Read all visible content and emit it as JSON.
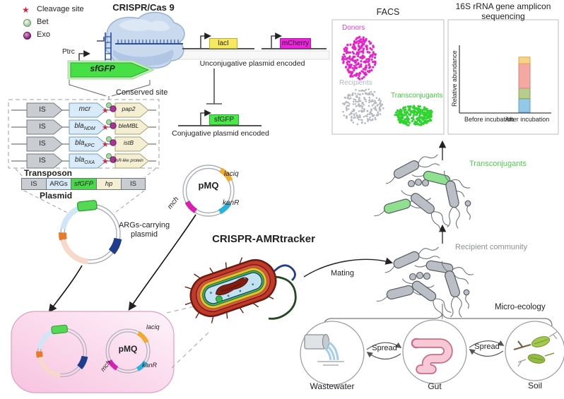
{
  "legend": {
    "items": [
      {
        "icon": "cleavage-star",
        "label": "Cleavage site"
      },
      {
        "icon": "bet-sphere",
        "label": "Bet"
      },
      {
        "icon": "exo-sphere",
        "label": "Exo"
      }
    ]
  },
  "crispr": {
    "title": "CRISPR/Cas 9",
    "promoter": "Ptrc",
    "gene": "sfGFP",
    "conserved_site": "Conserved site"
  },
  "cassettes": {
    "rows": [
      {
        "is": "IS",
        "gene": "mcr",
        "gene_sub": "",
        "target": "pap2"
      },
      {
        "is": "IS",
        "gene": "bla",
        "gene_sub": "NDM",
        "target": "bleMBL"
      },
      {
        "is": "IS",
        "gene": "bla",
        "gene_sub": "KPC",
        "target": "istB"
      },
      {
        "is": "IS",
        "gene": "bla",
        "gene_sub": "OXA",
        "target": "ysR-like protein"
      }
    ]
  },
  "transposon": {
    "title": "Transposon",
    "segments": [
      "IS",
      "ARGs",
      "sfGFP",
      "hp",
      "IS"
    ]
  },
  "plasmid_section": {
    "title": "Plasmid",
    "args_label_line1": "ARGs-carrying",
    "args_label_line2": "plasmid"
  },
  "constructs": {
    "laci": "lacI",
    "mcherry": "mCherry",
    "unconjugative": "Unconjugative plasmid encoded",
    "sfgfp": "sfGFP",
    "conjugative": "Conjugative plasmid encoded"
  },
  "pmq": {
    "name": "pMQ",
    "laciq": "laciq",
    "kanr": "kanR",
    "mch": "mch"
  },
  "tracker": {
    "title": "CRISPR-AMRtracker",
    "mating": "Mating"
  },
  "facs": {
    "title": "FACS",
    "clusters": [
      {
        "name": "Donors",
        "color": "#e623c8",
        "label_color": "#e83cc8",
        "dots": 230,
        "size": 1.6
      },
      {
        "name": "Recipients",
        "color": "#b4bac0",
        "label_color": "#b0b8be",
        "dots": 210,
        "size": 1.3
      },
      {
        "name": "Transconjugants",
        "color": "#2fd42f",
        "label_color": "#3ecb3e",
        "dots": 240,
        "size": 1.6
      }
    ]
  },
  "sequencing": {
    "title_line1": "16S rRNA gene amplicon",
    "title_line2": "sequencing"
  },
  "chart_data": {
    "type": "bar",
    "stacked": true,
    "title": "16S rRNA gene amplicon sequencing",
    "categories": [
      "Before incubation",
      "After incubation"
    ],
    "series": [
      {
        "name": "taxon-blue",
        "color": "#92c8e8",
        "border": "#64a0c8",
        "values": [
          0,
          0.21
        ]
      },
      {
        "name": "taxon-green",
        "color": "#b6cd8c",
        "border": "#8aa455",
        "values": [
          0,
          0.16
        ]
      },
      {
        "name": "taxon-salmon",
        "color": "#f3a9a1",
        "border": "#d4847c",
        "values": [
          0,
          0.38
        ]
      },
      {
        "name": "taxon-yellow",
        "color": "#f6d387",
        "border": "#daa94f",
        "values": [
          0,
          0.1
        ]
      }
    ],
    "ylabel": "Relative abundance",
    "ylim": [
      0,
      1
    ],
    "grid": false,
    "legend_position": "none"
  },
  "community": {
    "transconjugants": "Transconjugants",
    "transconjugants_color": "#4ad04a",
    "recipient": "Recipient community",
    "recipient_color": "#8a9096"
  },
  "ecology": {
    "title": "Micro-ecology",
    "spread": "Spread",
    "sites": [
      "Wastewater",
      "Gut",
      "Soil"
    ]
  }
}
